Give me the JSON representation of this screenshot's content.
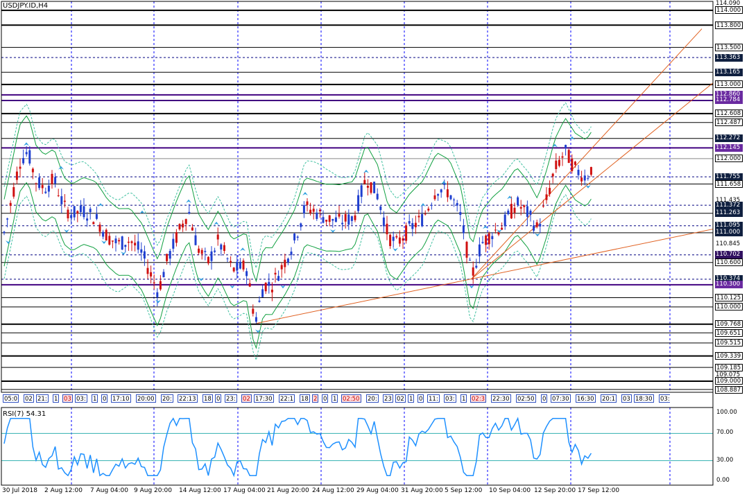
{
  "chart": {
    "symbol_title": "USDJPY.ID,H4",
    "rsi_title": "RSI(7) 54.31",
    "colors": {
      "bull_candle": "#1f3fd0",
      "bear_candle": "#d01010",
      "trendline": "#e06020",
      "grid": "#0000ff",
      "bollinger": "#10a040",
      "rsi_line": "#1e90ff",
      "price_box": "#000040"
    },
    "icons": [
      "up-arrow-marker-icon",
      "down-arrow-marker-icon"
    ]
  },
  "price_axis": {
    "labels": [
      {
        "text": "114.090",
        "boxed": false
      },
      {
        "text": "114.000",
        "boxed": true
      },
      {
        "text": "113.800",
        "boxed": true
      },
      {
        "text": "113.500",
        "boxed": true
      },
      {
        "text": "113.363",
        "boxed": true
      },
      {
        "text": "113.165",
        "boxed": true
      },
      {
        "text": "113.000",
        "boxed": true
      },
      {
        "text": "112.860",
        "boxed": true
      },
      {
        "text": "112.784",
        "boxed": true
      },
      {
        "text": "112.608",
        "boxed": true
      },
      {
        "text": "112.487",
        "boxed": true
      },
      {
        "text": "112.272",
        "boxed": true
      },
      {
        "text": "112.145",
        "boxed": true
      },
      {
        "text": "112.000",
        "boxed": true
      },
      {
        "text": "111.755",
        "boxed": true
      },
      {
        "text": "111.658",
        "boxed": true
      },
      {
        "text": "111.435",
        "boxed": false
      },
      {
        "text": "111.372",
        "boxed": true
      },
      {
        "text": "111.263",
        "boxed": true
      },
      {
        "text": "111.095",
        "boxed": true
      },
      {
        "text": "111.000",
        "boxed": true
      },
      {
        "text": "110.845",
        "boxed": false
      },
      {
        "text": "110.702",
        "boxed": true
      },
      {
        "text": "110.600",
        "boxed": true
      },
      {
        "text": "110.374",
        "boxed": true
      },
      {
        "text": "110.300",
        "boxed": true
      },
      {
        "text": "110.125",
        "boxed": true
      },
      {
        "text": "110.000",
        "boxed": true
      },
      {
        "text": "109.768",
        "boxed": true
      },
      {
        "text": "109.651",
        "boxed": true
      },
      {
        "text": "109.515",
        "boxed": true
      },
      {
        "text": "109.339",
        "boxed": true
      },
      {
        "text": "109.185",
        "boxed": true
      },
      {
        "text": "109.075",
        "boxed": false
      },
      {
        "text": "109.000",
        "boxed": true
      },
      {
        "text": "108.887",
        "boxed": true
      }
    ]
  },
  "rsi_axis": {
    "labels": [
      "100.00",
      "70.00",
      "30.00",
      "0.00"
    ]
  },
  "time_axis": {
    "labels": [
      "30 Jul 2018",
      "2 Aug 12:00",
      "7 Aug 04:00",
      "9 Aug 20:00",
      "14 Aug 12:00",
      "17 Aug 04:00",
      "21 Aug 20:00",
      "24 Aug 12:00",
      "29 Aug 04:00",
      "31 Aug 20:00",
      "5 Sep 12:00",
      "10 Sep 04:00",
      "12 Sep 20:00",
      "17 Sep 12:00"
    ]
  },
  "sessions": [
    {
      "text": "05:0",
      "red": false
    },
    {
      "text": "02",
      "red": false
    },
    {
      "text": "21:",
      "red": false
    },
    {
      "text": "1",
      "red": false
    },
    {
      "text": "03",
      "red": true
    },
    {
      "text": "03:",
      "red": false
    },
    {
      "text": "1",
      "red": false
    },
    {
      "text": "0",
      "red": false
    },
    {
      "text": "17:10",
      "red": false
    },
    {
      "text": "20:00",
      "red": false
    },
    {
      "text": "20:",
      "red": false
    },
    {
      "text": "22:13",
      "red": false
    },
    {
      "text": "18",
      "red": false
    },
    {
      "text": "0",
      "red": false
    },
    {
      "text": "23:",
      "red": false
    },
    {
      "text": "02",
      "red": true
    },
    {
      "text": "17:30",
      "red": false
    },
    {
      "text": "22:1",
      "red": false
    },
    {
      "text": "18",
      "red": false
    },
    {
      "text": "2",
      "red": true
    },
    {
      "text": "0",
      "red": false
    },
    {
      "text": "1",
      "red": false
    },
    {
      "text": "02:50",
      "red": true
    },
    {
      "text": "20:",
      "red": false
    },
    {
      "text": "23",
      "red": false
    },
    {
      "text": "02",
      "red": false
    },
    {
      "text": "1",
      "red": false
    },
    {
      "text": "0",
      "red": false
    },
    {
      "text": "11:",
      "red": false
    },
    {
      "text": "03:",
      "red": false
    },
    {
      "text": "1",
      "red": false
    },
    {
      "text": "02:3",
      "red": true
    },
    {
      "text": "22:30",
      "red": false
    },
    {
      "text": "02:50",
      "red": false
    },
    {
      "text": "0",
      "red": false
    },
    {
      "text": "07:30",
      "red": false
    },
    {
      "text": "16:30",
      "red": false
    },
    {
      "text": "20:1",
      "red": false
    },
    {
      "text": "03",
      "red": false
    },
    {
      "text": "18:30",
      "red": false
    },
    {
      "text": "03:00",
      "red": false
    },
    {
      "text": "1",
      "red": false
    },
    {
      "text": "0",
      "red": false
    },
    {
      "text": "22:30",
      "red": false
    }
  ]
}
